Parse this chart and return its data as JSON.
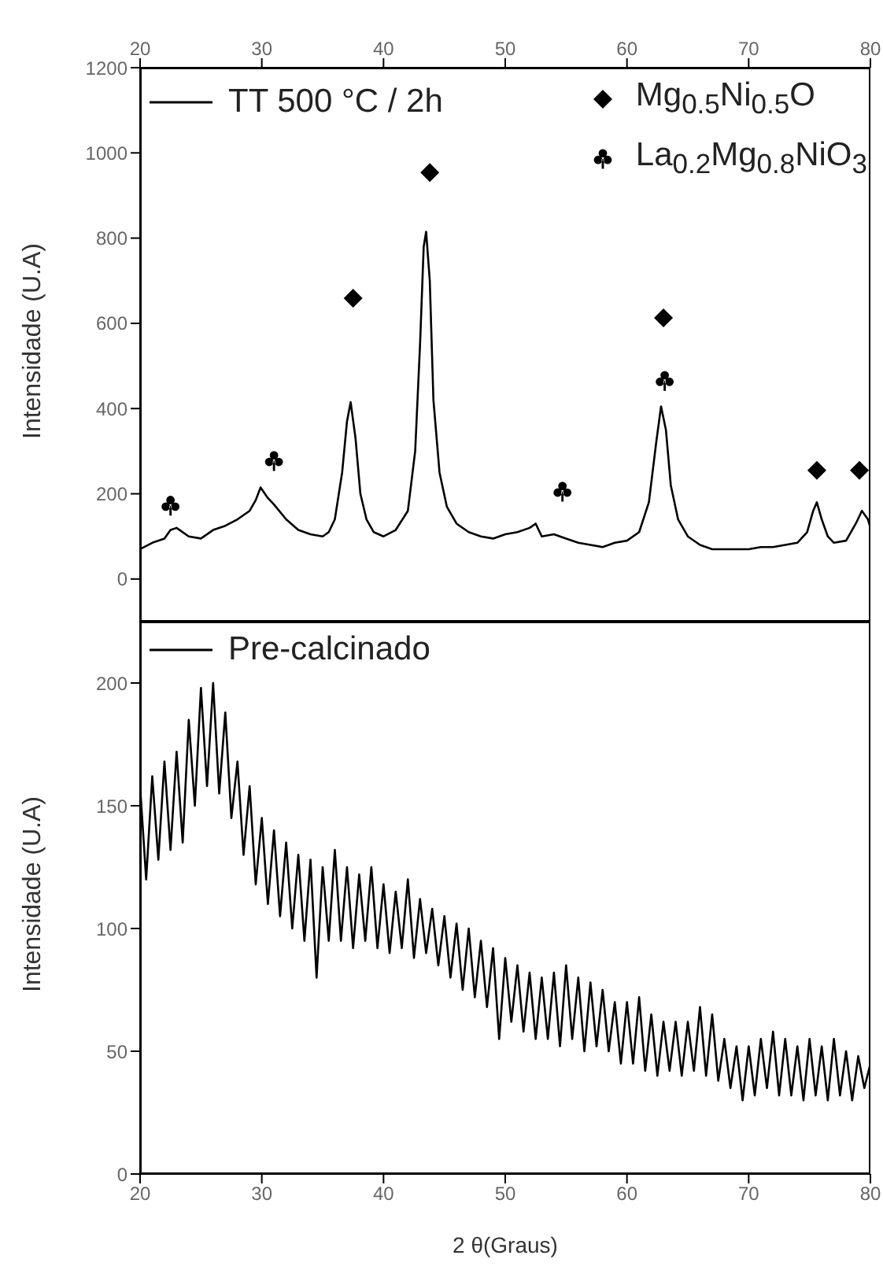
{
  "chart_data": [
    {
      "type": "line",
      "ylabel": "Intensidade (U.A)",
      "xlim": [
        20,
        80
      ],
      "xticks": [
        20,
        30,
        40,
        50,
        60,
        70,
        80
      ],
      "ylim": [
        -100,
        1200
      ],
      "yticks": [
        0,
        200,
        400,
        600,
        800,
        1000,
        1200
      ],
      "legend": "top",
      "grid": false,
      "line_style": "solid",
      "series": [
        {
          "name": "TT 500 °C / 2h",
          "color": "#000000",
          "marker": "none",
          "x": [
            20,
            21,
            22,
            22.5,
            23,
            24,
            25,
            26,
            27,
            28,
            29,
            29.5,
            29.9,
            30.5,
            31,
            32,
            33,
            34,
            35,
            35.5,
            36,
            36.6,
            37,
            37.3,
            37.7,
            38.1,
            38.6,
            39.2,
            40,
            41,
            42,
            42.6,
            43,
            43.3,
            43.5,
            43.8,
            44.1,
            44.6,
            45.2,
            46,
            47,
            48,
            49,
            50,
            51,
            52,
            52.5,
            53,
            54,
            55,
            56,
            57,
            58,
            59,
            60,
            61,
            61.8,
            62.4,
            62.8,
            63.2,
            63.6,
            64.2,
            65,
            66,
            67,
            68,
            69,
            70,
            71,
            72,
            73,
            74,
            74.8,
            75.3,
            75.6,
            76,
            76.5,
            77,
            78,
            78.8,
            79.3,
            79.8,
            80
          ],
          "values": [
            70,
            85,
            95,
            115,
            120,
            100,
            95,
            115,
            125,
            140,
            160,
            185,
            215,
            190,
            175,
            140,
            115,
            105,
            100,
            110,
            140,
            250,
            370,
            415,
            330,
            200,
            140,
            110,
            100,
            115,
            160,
            300,
            550,
            780,
            815,
            700,
            420,
            250,
            170,
            130,
            110,
            100,
            95,
            105,
            110,
            120,
            130,
            100,
            105,
            95,
            85,
            80,
            75,
            85,
            90,
            110,
            180,
            320,
            405,
            350,
            220,
            140,
            100,
            80,
            70,
            70,
            70,
            70,
            75,
            75,
            80,
            85,
            110,
            160,
            180,
            140,
            100,
            85,
            90,
            130,
            160,
            140,
            120
          ]
        },
        {
          "name": "Mg$_{0.5}$Ni$_{0.5}$O",
          "type": "scatter",
          "color": "#000000",
          "marker": "diamond",
          "x": [
            37.5,
            43.8,
            63,
            75.6,
            79.1
          ],
          "values": [
            659,
            954,
            613,
            255,
            255
          ]
        },
        {
          "name": "La$_{0.2}$Mg$_{0.8}$NiO$_{3}$",
          "type": "scatter",
          "color": "#000000",
          "x": [
            22.5,
            31,
            54.7,
            63.1
          ],
          "values": [
            172,
            277,
            205,
            465
          ]
        }
      ]
    },
    {
      "type": "line",
      "ylabel": "Intensidade (U.A)",
      "xlabel": "2 θ(Graus)",
      "xlim": [
        20,
        80
      ],
      "xticks": [
        20,
        30,
        40,
        50,
        60,
        70,
        80
      ],
      "ylim": [
        0,
        225
      ],
      "yticks": [
        0,
        50,
        100,
        150,
        200
      ],
      "legend": "top left",
      "grid": false,
      "line_style": "solid",
      "series": [
        {
          "name": "Pre-calcinado",
          "color": "#000000",
          "marker": "none",
          "x": [
            20,
            20.5,
            21,
            21.5,
            22,
            22.5,
            23,
            23.5,
            24,
            24.5,
            25,
            25.5,
            26,
            26.5,
            27,
            27.5,
            28,
            28.5,
            29,
            29.5,
            30,
            30.5,
            31,
            31.5,
            32,
            32.5,
            33,
            33.5,
            34,
            34.5,
            35,
            35.5,
            36,
            36.5,
            37,
            37.5,
            38,
            38.5,
            39,
            39.5,
            40,
            40.5,
            41,
            41.5,
            42,
            42.5,
            43,
            43.5,
            44,
            44.5,
            45,
            45.5,
            46,
            46.5,
            47,
            47.5,
            48,
            48.5,
            49,
            49.5,
            50,
            50.5,
            51,
            51.5,
            52,
            52.5,
            53,
            53.5,
            54,
            54.5,
            55,
            55.5,
            56,
            56.5,
            57,
            57.5,
            58,
            58.5,
            59,
            59.5,
            60,
            60.5,
            61,
            61.5,
            62,
            62.5,
            63,
            63.5,
            64,
            64.5,
            65,
            65.5,
            66,
            66.5,
            67,
            67.5,
            68,
            68.5,
            69,
            69.5,
            70,
            70.5,
            71,
            71.5,
            72,
            72.5,
            73,
            73.5,
            74,
            74.5,
            75,
            75.5,
            76,
            76.5,
            77,
            77.5,
            78,
            78.5,
            79,
            79.5,
            80
          ],
          "values": [
            158,
            120,
            162,
            128,
            168,
            132,
            172,
            135,
            185,
            150,
            198,
            158,
            200,
            155,
            188,
            145,
            168,
            130,
            158,
            118,
            145,
            110,
            140,
            105,
            135,
            100,
            130,
            95,
            128,
            80,
            125,
            95,
            132,
            95,
            125,
            92,
            122,
            95,
            125,
            92,
            118,
            90,
            115,
            92,
            120,
            88,
            112,
            90,
            108,
            85,
            105,
            80,
            102,
            75,
            100,
            72,
            95,
            68,
            92,
            55,
            88,
            62,
            85,
            58,
            82,
            55,
            80,
            55,
            82,
            52,
            85,
            55,
            80,
            50,
            78,
            52,
            75,
            50,
            70,
            45,
            70,
            45,
            72,
            42,
            65,
            40,
            62,
            42,
            62,
            40,
            62,
            42,
            68,
            40,
            65,
            38,
            55,
            35,
            52,
            30,
            52,
            32,
            55,
            35,
            58,
            32,
            55,
            32,
            52,
            30,
            55,
            32,
            52,
            30,
            55,
            32,
            50,
            30,
            48,
            35,
            45
          ]
        }
      ]
    }
  ]
}
